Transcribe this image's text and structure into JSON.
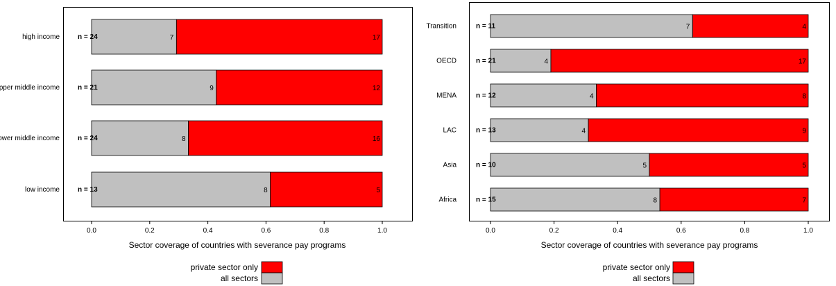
{
  "colors": {
    "all_sectors": "#c0c0c0",
    "private_only": "#ff0000",
    "frame": "#000000"
  },
  "chart_data": [
    {
      "type": "bar",
      "orientation": "horizontal",
      "stacked": true,
      "categories": [
        "high income",
        "upper middle income",
        "lower middle income",
        "low income"
      ],
      "n_labels": [
        "n = 24",
        "n = 21",
        "n = 24",
        "n = 13"
      ],
      "series": [
        {
          "name": "all sectors",
          "key": "all_sectors",
          "counts": [
            7,
            9,
            8,
            8
          ],
          "values": [
            0.292,
            0.429,
            0.333,
            0.615
          ]
        },
        {
          "name": "private sector only",
          "key": "private_only",
          "counts": [
            17,
            12,
            16,
            5
          ],
          "values": [
            0.708,
            0.571,
            0.667,
            0.385
          ]
        }
      ],
      "xlabel": "Sector coverage of countries with severance pay programs",
      "xlim": [
        0,
        1
      ],
      "xticks": [
        "0.0",
        "0.2",
        "0.4",
        "0.6",
        "0.8",
        "1.0"
      ],
      "legend_placement": "bottom",
      "grid": false
    },
    {
      "type": "bar",
      "orientation": "horizontal",
      "stacked": true,
      "categories": [
        "Transition",
        "OECD",
        "MENA",
        "LAC",
        "Asia",
        "Africa"
      ],
      "n_labels": [
        "n = 11",
        "n = 21",
        "n = 12",
        "n = 13",
        "n = 10",
        "n = 15"
      ],
      "series": [
        {
          "name": "all sectors",
          "key": "all_sectors",
          "counts": [
            7,
            4,
            4,
            4,
            5,
            8
          ],
          "values": [
            0.636,
            0.19,
            0.333,
            0.308,
            0.5,
            0.533
          ]
        },
        {
          "name": "private sector only",
          "key": "private_only",
          "counts": [
            4,
            17,
            8,
            9,
            5,
            7
          ],
          "values": [
            0.364,
            0.81,
            0.667,
            0.692,
            0.5,
            0.467
          ]
        }
      ],
      "xlabel": "Sector coverage of countries with severance pay programs",
      "xlim": [
        0,
        1
      ],
      "xticks": [
        "0.0",
        "0.2",
        "0.4",
        "0.6",
        "0.8",
        "1.0"
      ],
      "legend_placement": "bottom",
      "grid": false
    }
  ],
  "legend": {
    "private_label": "private sector only",
    "all_label": "all sectors"
  }
}
